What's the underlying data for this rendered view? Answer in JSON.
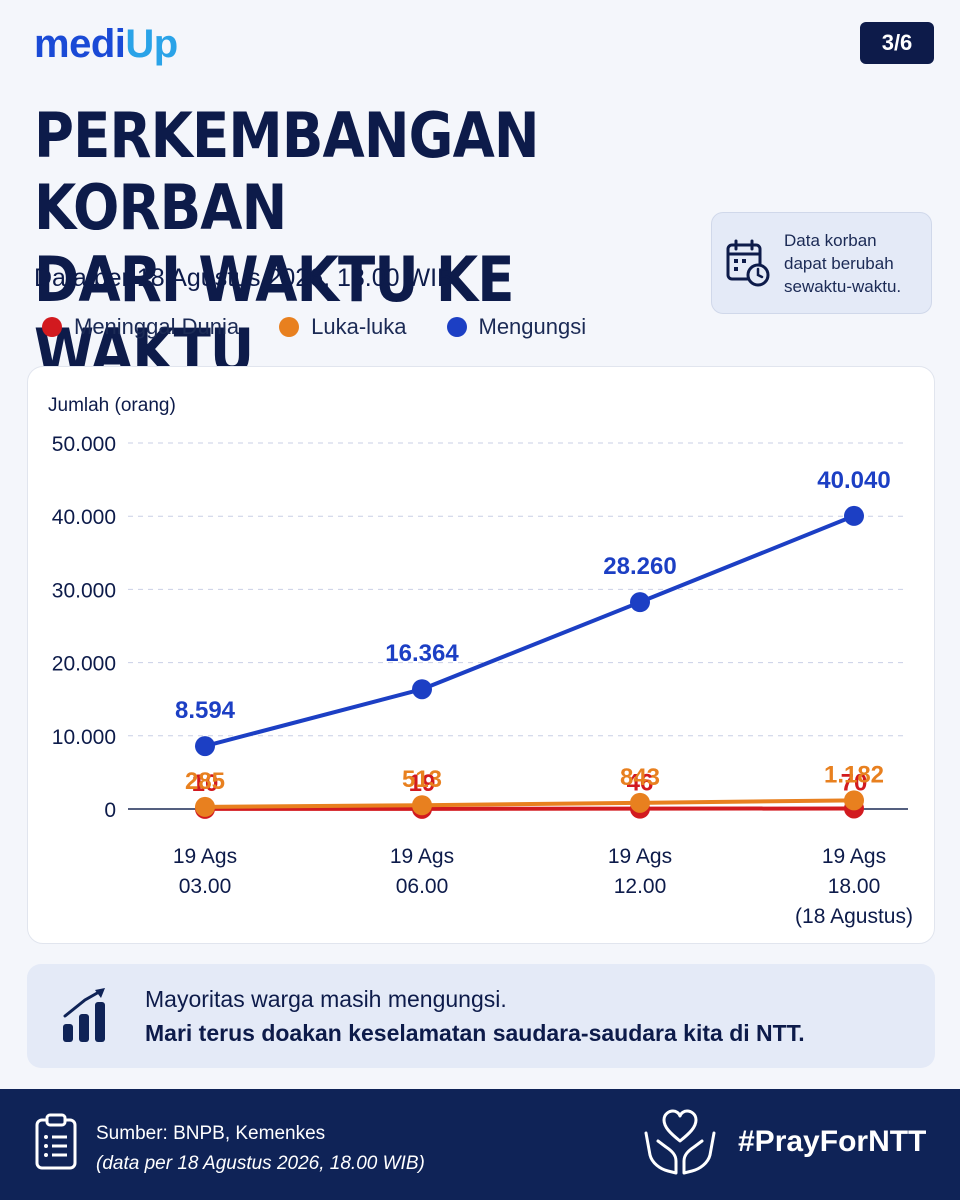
{
  "brand": {
    "part1": "medi",
    "part2": "Up"
  },
  "page_indicator": "3/6",
  "title": {
    "line1": "PERKEMBANGAN KORBAN",
    "line2": "DARI WAKTU KE WAKTU"
  },
  "subtitle": "Data per 18 Agustus 2026, 18.00 WIB",
  "note": {
    "line1": "Data korban",
    "line2": "dapat berubah",
    "line3": "sewaktu-waktu.",
    "icon": "calendar-clock-icon"
  },
  "colors": {
    "navy": "#0d1b4a",
    "red": "#d21a1f",
    "orange": "#e8801f",
    "blue": "#1c3fc4",
    "grid": "#c9cfe6"
  },
  "chart_data": {
    "type": "line",
    "ylabel": "Jumlah (orang)",
    "ylim": [
      0,
      50000
    ],
    "yticks": [
      "50.000",
      "40.000",
      "30.000",
      "20.000",
      "10.000",
      "0"
    ],
    "categories": [
      {
        "line1": "19 Ags",
        "line2": "03.00",
        "line3": ""
      },
      {
        "line1": "19 Ags",
        "line2": "06.00",
        "line3": ""
      },
      {
        "line1": "19 Ags",
        "line2": "12.00",
        "line3": ""
      },
      {
        "line1": "19 Ags",
        "line2": "18.00",
        "line3": "(18 Agustus)"
      }
    ],
    "legend_position": "top-left",
    "series": [
      {
        "name": "Meninggal Dunia",
        "color": "#d21a1f",
        "values": [
          10,
          19,
          46,
          70
        ],
        "labels": [
          "10",
          "19",
          "46",
          "70"
        ]
      },
      {
        "name": "Luka-luka",
        "color": "#e8801f",
        "values": [
          285,
          513,
          843,
          1182
        ],
        "labels": [
          "285",
          "513",
          "843",
          "1.182"
        ]
      },
      {
        "name": "Mengungsi",
        "color": "#1c3fc4",
        "values": [
          8594,
          16364,
          28260,
          40040
        ],
        "labels": [
          "8.594",
          "16.364",
          "28.260",
          "40.040"
        ]
      }
    ]
  },
  "message": {
    "line1": "Mayoritas warga masih mengungsi.",
    "line2": "Mari terus doakan keselamatan saudara-saudara kita di NTT.",
    "icon": "growth-chart-icon"
  },
  "footer": {
    "source": "Sumber: BNPB, Kemenkes",
    "date": "(data per 18 Agustus 2026, 18.00 WIB)",
    "hashtag": "#PrayForNTT",
    "clipboard_icon": "clipboard-icon",
    "hands_icon": "heart-hands-icon"
  }
}
